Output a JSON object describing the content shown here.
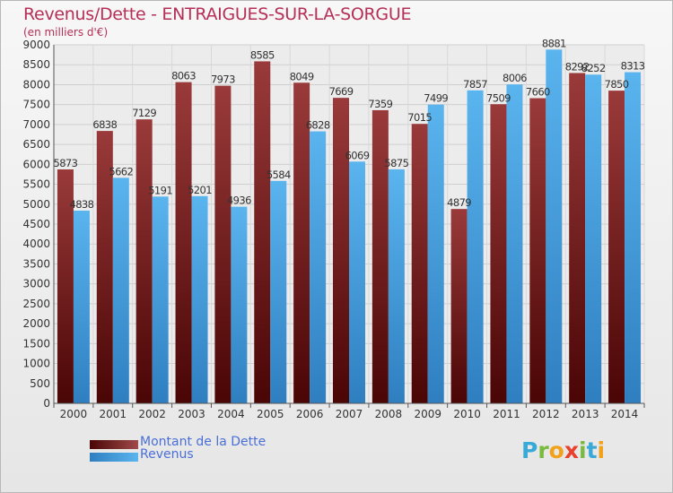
{
  "header": {
    "title": "Revenus/Dette - ENTRAIGUES-SUR-LA-SORGUE",
    "subtitle": "(en milliers d'€)"
  },
  "legend": {
    "debt_label": "Montant de la Dette",
    "revenue_label": "Revenus"
  },
  "logo": {
    "letters": [
      "P",
      "r",
      "o",
      "x",
      "i",
      "t",
      "i"
    ],
    "colors": [
      "#3aa9d8",
      "#79bb3f",
      "#f2a21a",
      "#e8412c",
      "#79bb3f",
      "#3aa9d8",
      "#f2a21a"
    ]
  },
  "colors": {
    "debt": "#6e1717",
    "revenue": "#4ea4e2"
  },
  "chart_data": {
    "type": "bar",
    "title": "Revenus/Dette - ENTRAIGUES-SUR-LA-SORGUE",
    "ylabel": "",
    "xlabel": "",
    "ylim": [
      0,
      9000
    ],
    "yticks": [
      0,
      500,
      1000,
      1500,
      2000,
      2500,
      3000,
      3500,
      4000,
      4500,
      5000,
      5500,
      6000,
      6500,
      7000,
      7500,
      8000,
      8500,
      9000
    ],
    "grid": true,
    "legend_position": "bottom-left",
    "categories": [
      "2000",
      "2001",
      "2002",
      "2003",
      "2004",
      "2005",
      "2006",
      "2007",
      "2008",
      "2009",
      "2010",
      "2011",
      "2012",
      "2013",
      "2014"
    ],
    "series": [
      {
        "name": "Montant de la Dette",
        "values": [
          5873,
          6838,
          7129,
          8063,
          7973,
          8585,
          8049,
          7669,
          7359,
          7015,
          4879,
          7509,
          7660,
          8292,
          7850
        ],
        "labels": [
          "5873",
          "6838",
          "7129",
          "8063",
          "7973",
          "8585",
          "8049",
          "7669",
          "7359",
          "7015",
          "4879",
          "7509",
          "7660",
          "8292",
          "7850"
        ]
      },
      {
        "name": "Revenus",
        "values": [
          4838,
          5662,
          5191,
          5201,
          4936,
          5584,
          6828,
          6069,
          5875,
          7499,
          7857,
          8006,
          8881,
          8252,
          8313
        ],
        "labels": [
          "4838",
          "5662",
          "5191",
          "5201",
          "4936",
          "5584",
          "6828",
          "6069",
          "5875",
          "7499",
          "7857",
          "8006",
          "8881",
          "8252",
          "8313"
        ]
      }
    ]
  }
}
